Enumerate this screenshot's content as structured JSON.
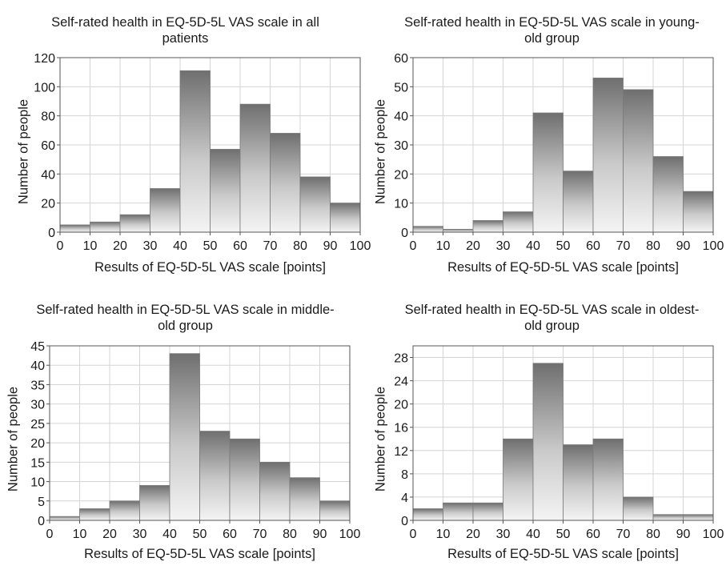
{
  "chart_data": [
    {
      "type": "bar",
      "title": "Self-rated health in EQ-5D-5L VAS scale in all\npatients",
      "xlabel": "Results of EQ-5D-5L VAS scale [points]",
      "ylabel": "Number of people",
      "bin_edges": [
        0,
        10,
        20,
        30,
        40,
        50,
        60,
        70,
        80,
        90,
        100
      ],
      "values": [
        5,
        7,
        12,
        30,
        111,
        57,
        88,
        68,
        38,
        20
      ],
      "xticks": [
        "0",
        "10",
        "20",
        "30",
        "40",
        "50",
        "60",
        "70",
        "80",
        "90",
        "100"
      ],
      "yticks": [
        "0",
        "20",
        "40",
        "60",
        "80",
        "100",
        "120"
      ],
      "ylim": [
        0,
        120
      ],
      "grid": true
    },
    {
      "type": "bar",
      "title": "Self-rated health in EQ-5D-5L VAS scale in young-\nold group",
      "xlabel": "Results of EQ-5D-5L VAS scale [points]",
      "ylabel": "Number of people",
      "bin_edges": [
        0,
        10,
        20,
        30,
        40,
        50,
        60,
        70,
        80,
        90,
        100
      ],
      "values": [
        2,
        1,
        4,
        7,
        41,
        21,
        53,
        49,
        26,
        14
      ],
      "xticks": [
        "0",
        "10",
        "20",
        "30",
        "40",
        "50",
        "60",
        "70",
        "80",
        "90",
        "100"
      ],
      "yticks": [
        "0",
        "10",
        "20",
        "30",
        "40",
        "50",
        "60"
      ],
      "ylim": [
        0,
        60
      ],
      "grid": true
    },
    {
      "type": "bar",
      "title": "Self-rated health in EQ-5D-5L VAS scale in middle-\nold group",
      "xlabel": "Results of EQ-5D-5L VAS scale [points]",
      "ylabel": "Number of people",
      "bin_edges": [
        0,
        10,
        20,
        30,
        40,
        50,
        60,
        70,
        80,
        90,
        100
      ],
      "values": [
        1,
        3,
        5,
        9,
        43,
        23,
        21,
        15,
        11,
        5
      ],
      "xticks": [
        "0",
        "10",
        "20",
        "30",
        "40",
        "50",
        "60",
        "70",
        "80",
        "90",
        "100"
      ],
      "yticks": [
        "0",
        "5",
        "10",
        "15",
        "20",
        "25",
        "30",
        "35",
        "40",
        "45"
      ],
      "ylim": [
        0,
        45
      ],
      "grid": true
    },
    {
      "type": "bar",
      "title": "Self-rated health in EQ-5D-5L VAS scale in oldest-\nold group",
      "xlabel": "Results of EQ-5D-5L VAS scale [points]",
      "ylabel": "Number of people",
      "bin_edges": [
        0,
        10,
        20,
        30,
        40,
        50,
        60,
        70,
        80,
        90,
        100
      ],
      "values": [
        2,
        3,
        3,
        14,
        27,
        13,
        14,
        4,
        1,
        1
      ],
      "xticks": [
        "0",
        "10",
        "20",
        "30",
        "40",
        "50",
        "60",
        "70",
        "80",
        "90",
        "100"
      ],
      "yticks": [
        "0",
        "4",
        "8",
        "12",
        "16",
        "20",
        "24",
        "28"
      ],
      "ylim": [
        0,
        30
      ],
      "grid": true
    }
  ]
}
